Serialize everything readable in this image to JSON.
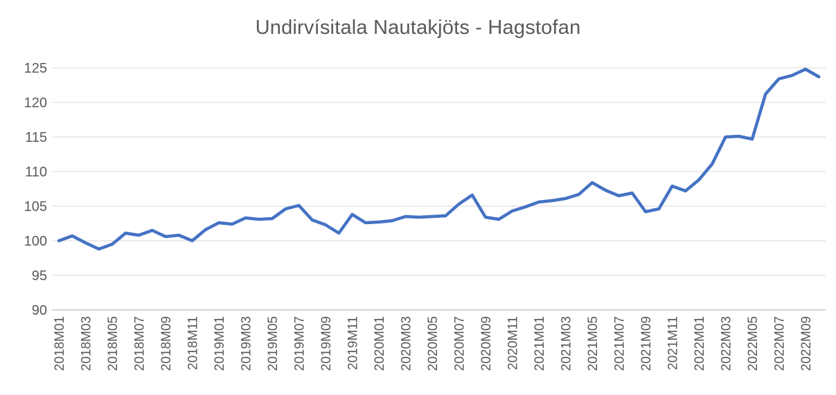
{
  "chart_data": {
    "type": "line",
    "title": "Undirvísitala Nautakjöts - Hagstofan",
    "xlabel": "",
    "ylabel": "",
    "ylim": [
      90,
      125
    ],
    "yticks": [
      90,
      95,
      100,
      105,
      110,
      115,
      120,
      125
    ],
    "xtick_every": 2,
    "grid": "horizontal",
    "legend_position": "none",
    "x": [
      "2018M01",
      "2018M02",
      "2018M03",
      "2018M04",
      "2018M05",
      "2018M06",
      "2018M07",
      "2018M08",
      "2018M09",
      "2018M10",
      "2018M11",
      "2018M12",
      "2019M01",
      "2019M02",
      "2019M03",
      "2019M04",
      "2019M05",
      "2019M06",
      "2019M07",
      "2019M08",
      "2019M09",
      "2019M10",
      "2019M11",
      "2019M12",
      "2020M01",
      "2020M02",
      "2020M03",
      "2020M04",
      "2020M05",
      "2020M06",
      "2020M07",
      "2020M08",
      "2020M09",
      "2020M10",
      "2020M11",
      "2020M12",
      "2021M01",
      "2021M02",
      "2021M03",
      "2021M04",
      "2021M05",
      "2021M06",
      "2021M07",
      "2021M08",
      "2021M09",
      "2021M10",
      "2021M11",
      "2021M12",
      "2022M01",
      "2022M02",
      "2022M03",
      "2022M04",
      "2022M05",
      "2022M06",
      "2022M07",
      "2022M08",
      "2022M09",
      "2022M10"
    ],
    "values": [
      100.0,
      100.7,
      99.7,
      98.8,
      99.5,
      101.1,
      100.8,
      101.5,
      100.6,
      100.8,
      100.0,
      101.6,
      102.6,
      102.4,
      103.3,
      103.1,
      103.2,
      104.6,
      105.1,
      103.0,
      102.3,
      101.1,
      103.8,
      102.6,
      102.7,
      102.9,
      103.5,
      103.4,
      103.5,
      103.6,
      105.3,
      106.6,
      103.4,
      103.1,
      104.3,
      104.9,
      105.6,
      105.8,
      106.1,
      106.7,
      108.4,
      107.3,
      106.5,
      106.9,
      104.2,
      104.6,
      107.9,
      107.2,
      108.8,
      111.1,
      115.0,
      115.1,
      114.7,
      121.2,
      123.4,
      123.9,
      124.8,
      123.7
    ]
  },
  "colors": {
    "line": "#4472C4",
    "gridline": "#D9D9D9",
    "axis_line": "#C6C6C6",
    "text": "#595959",
    "background": "#FFFFFF"
  }
}
